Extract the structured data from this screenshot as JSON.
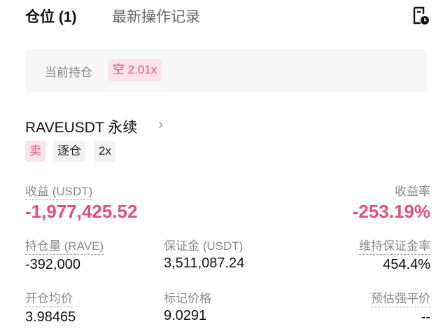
{
  "tabs": [
    {
      "label": "仓位 (1)",
      "active": true
    },
    {
      "label": "最新操作记录",
      "active": false
    }
  ],
  "header_icon": "order-history-clock-icon",
  "current_position": {
    "label": "当前持仓",
    "tag": "空 2.01x"
  },
  "position": {
    "symbol": "RAVEUSDT 永续",
    "tags": {
      "side": "卖",
      "margin_mode": "逐仓",
      "leverage": "2x"
    },
    "pnl": {
      "label": "收益 (USDT)",
      "value": "-1,977,425.52"
    },
    "roi": {
      "label": "收益率",
      "value": "-253.19%"
    },
    "size": {
      "label": "持仓量 (RAVE)",
      "value": "-392,000"
    },
    "margin": {
      "label": "保证金 (USDT)",
      "value": "3,511,087.24"
    },
    "maint_ratio": {
      "label": "维持保证金率",
      "value": "454.4%"
    },
    "entry": {
      "label": "开仓均价",
      "value": "3.98465"
    },
    "mark": {
      "label": "标记价格",
      "value": "9.0291"
    },
    "liq": {
      "label": "预估强平价",
      "value": "--"
    }
  },
  "colors": {
    "negative": "#e0507a",
    "tag_bg": "#fbe3ea"
  }
}
